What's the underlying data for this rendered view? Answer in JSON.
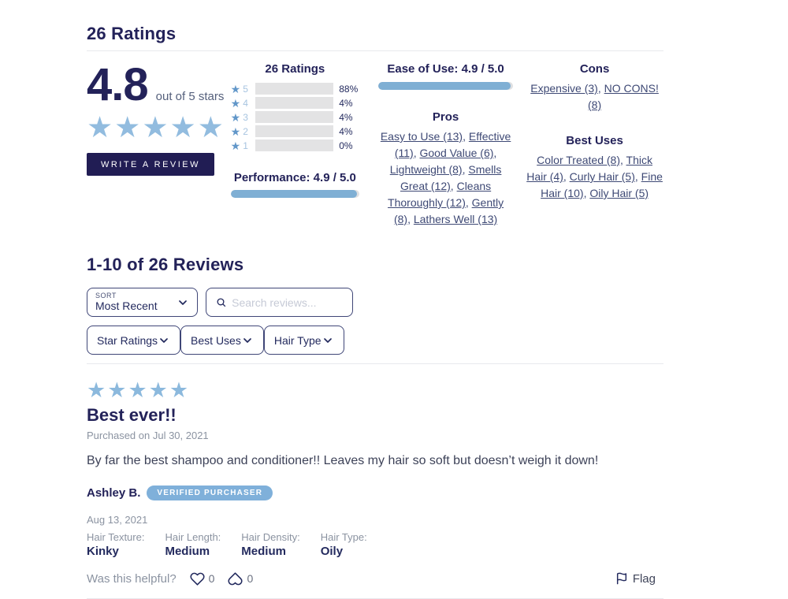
{
  "header": {
    "title": "26 Ratings"
  },
  "summary": {
    "score": "4.8",
    "score_suffix": "out of 5 stars",
    "stars": 5,
    "write_review_label": "WRITE A REVIEW",
    "histogram": {
      "title": "26 Ratings",
      "rows": [
        {
          "stars": "5",
          "pct": "88%",
          "fill": 88
        },
        {
          "stars": "4",
          "pct": "4%",
          "fill": 4
        },
        {
          "stars": "3",
          "pct": "4%",
          "fill": 4
        },
        {
          "stars": "2",
          "pct": "4%",
          "fill": 4
        },
        {
          "stars": "1",
          "pct": "0%",
          "fill": 0
        }
      ]
    },
    "ease_of_use": {
      "label": "Ease of Use: 4.9 / 5.0",
      "fill": 98
    },
    "performance": {
      "label": "Performance: 4.9 / 5.0",
      "fill": 98
    },
    "cons": {
      "title": "Cons",
      "items": [
        "Expensive (3)",
        "NO CONS! (8)"
      ]
    },
    "pros": {
      "title": "Pros",
      "items": [
        "Easy to Use (13)",
        "Effective (11)",
        "Good Value (6)",
        "Lightweight (8)",
        "Smells Great (12)",
        "Cleans Thoroughly (12)",
        "Gently (8)",
        "Lathers Well (13)"
      ]
    },
    "best_uses": {
      "title": "Best Uses",
      "items": [
        "Color Treated (8)",
        "Thick Hair (4)",
        "Curly Hair (5)",
        "Fine Hair (10)",
        "Oily Hair (5)"
      ]
    }
  },
  "reviews": {
    "title": "1-10 of 26 Reviews",
    "sort": {
      "label": "SORT",
      "value": "Most Recent"
    },
    "search": {
      "placeholder": "Search reviews..."
    },
    "filters": [
      {
        "label": "Star Ratings"
      },
      {
        "label": "Best Uses"
      },
      {
        "label": "Hair Type"
      }
    ],
    "review": {
      "stars": 5,
      "title": "Best ever!!",
      "purchase_date": "Purchased on Jul 30, 2021",
      "body": "By far the best shampoo and conditioner!! Leaves my hair so soft but doesn’t weigh it down!",
      "reviewer": "Ashley B.",
      "badge": "VERIFIED PURCHASER",
      "review_date": "Aug 13, 2021",
      "attributes": [
        {
          "label": "Hair Texture:",
          "value": "Kinky"
        },
        {
          "label": "Hair Length:",
          "value": "Medium"
        },
        {
          "label": "Hair Density:",
          "value": "Medium"
        },
        {
          "label": "Hair Type:",
          "value": "Oily"
        }
      ],
      "helpful": {
        "question": "Was this helpful?",
        "up_count": "0",
        "down_count": "0"
      },
      "flag_label": "Flag"
    }
  },
  "colors": {
    "navy": "#232259",
    "button_navy": "#211d54",
    "star_blue": "#92bcdf",
    "bar_blue": "#7fafd4",
    "badge_blue": "#7fb0da",
    "track_gray": "#e3e3e4",
    "muted_gray": "#8b93a1"
  }
}
